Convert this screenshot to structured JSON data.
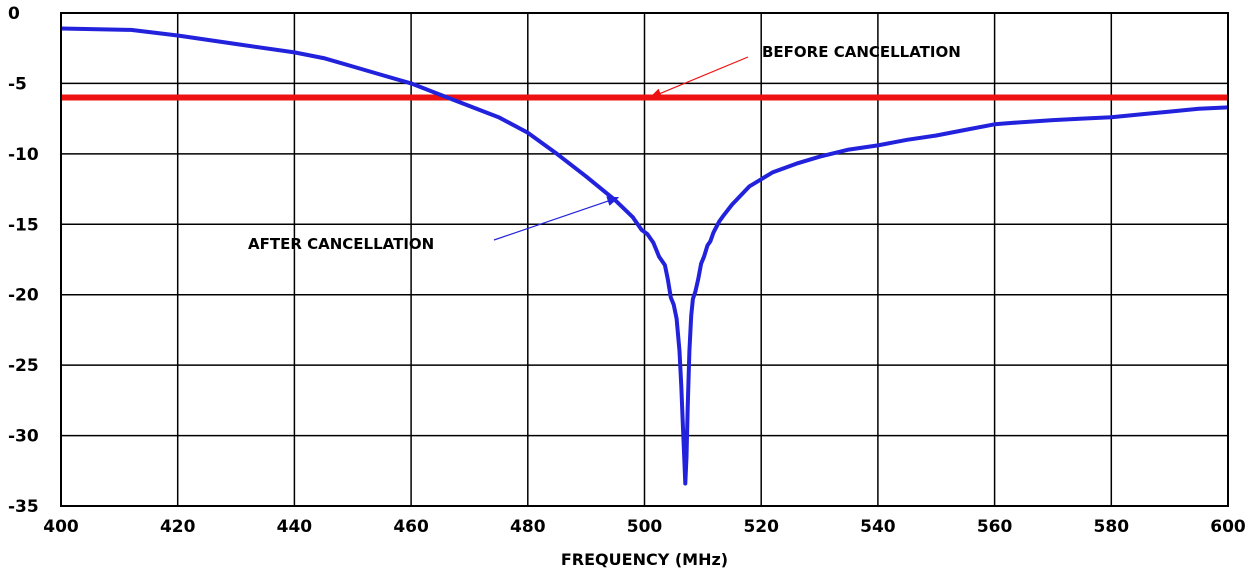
{
  "chart_data": {
    "type": "line",
    "title": "",
    "xlabel": "FREQUENCY (MHz)",
    "ylabel": "",
    "xlim": [
      400,
      600
    ],
    "ylim": [
      -35,
      0
    ],
    "x_ticks": [
      "400",
      "420",
      "440",
      "460",
      "480",
      "500",
      "520",
      "540",
      "560",
      "580",
      "600"
    ],
    "y_ticks": [
      "0",
      "-5",
      "-10",
      "-15",
      "-20",
      "-25",
      "-30",
      "-35"
    ],
    "grid": true,
    "legend": "none",
    "series": [
      {
        "color": "#ee1111",
        "x": [
          400,
          600
        ],
        "y": [
          -6,
          -6
        ]
      },
      {
        "color": "#2222dd",
        "x": [
          400,
          412,
          420,
          430,
          440,
          445,
          450,
          455,
          460,
          465,
          470,
          475,
          480,
          485,
          490,
          495,
          498,
          499.5,
          500.5,
          501.5,
          502,
          502.5,
          503,
          503.5,
          504,
          504.5,
          505,
          505.5,
          506,
          506.3,
          506.6,
          506.8,
          507,
          507.2,
          507.4,
          507.7,
          508,
          508.3,
          508.7,
          509.2,
          509.7,
          510.2,
          510.8,
          511.3,
          511.8,
          512.3,
          512.8,
          513.5,
          515,
          518,
          522,
          526,
          530,
          535,
          540,
          545,
          550,
          555,
          560,
          563,
          570,
          575,
          580,
          585,
          590,
          595,
          600
        ],
        "y": [
          -1.1,
          -1.2,
          -1.6,
          -2.2,
          -2.8,
          -3.2,
          -3.8,
          -4.4,
          -5.0,
          -5.8,
          -6.6,
          -7.4,
          -8.5,
          -10.0,
          -11.6,
          -13.3,
          -14.5,
          -15.4,
          -15.7,
          -16.3,
          -16.8,
          -17.3,
          -17.6,
          -17.9,
          -18.9,
          -20.2,
          -20.7,
          -21.7,
          -24.0,
          -26.5,
          -29.5,
          -31.5,
          -33.4,
          -31.5,
          -28.0,
          -24.0,
          -21.5,
          -20.3,
          -19.8,
          -18.9,
          -17.8,
          -17.3,
          -16.5,
          -16.2,
          -15.6,
          -15.2,
          -14.8,
          -14.4,
          -13.6,
          -12.3,
          -11.3,
          -10.7,
          -10.2,
          -9.7,
          -9.4,
          -9.0,
          -8.7,
          -8.3,
          -7.9,
          -7.8,
          -7.6,
          -7.5,
          -7.4,
          -7.2,
          -7.0,
          -6.8,
          -6.7
        ]
      }
    ],
    "annotations": [
      {
        "text": "BEFORE CANCELLATION",
        "points_to": {
          "x": 501,
          "y": -6
        }
      },
      {
        "text": "AFTER CANCELLATION",
        "points_to": {
          "x": 495.5,
          "y": -13.1
        }
      }
    ]
  }
}
